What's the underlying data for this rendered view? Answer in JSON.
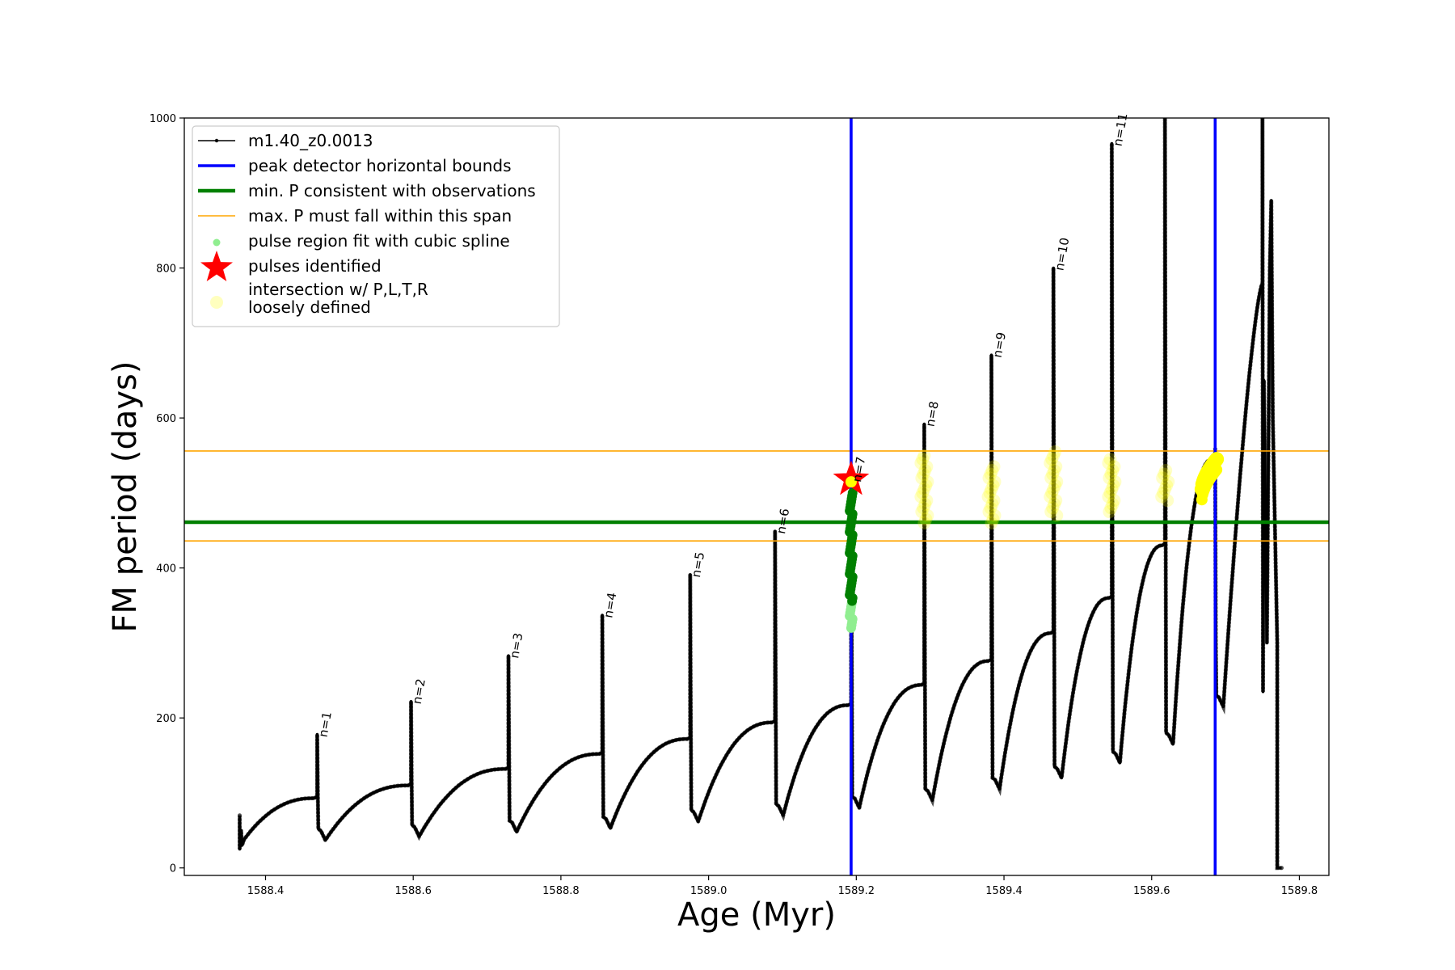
{
  "chart_data": {
    "type": "line",
    "xlabel": "Age (Myr)",
    "ylabel": "FM period (days)",
    "xlim": [
      1588.29,
      1589.84
    ],
    "ylim": [
      -10,
      1000
    ],
    "xticks": [
      1588.4,
      1588.6,
      1588.8,
      1589.0,
      1589.2,
      1589.4,
      1589.6,
      1589.8
    ],
    "xtick_labels": [
      "1588.4",
      "1588.6",
      "1588.8",
      "1589.0",
      "1589.2",
      "1589.4",
      "1589.6",
      "1589.8"
    ],
    "yticks": [
      0,
      200,
      400,
      600,
      800,
      1000
    ],
    "ytick_labels": [
      "0",
      "200",
      "400",
      "600",
      "800",
      "1000"
    ],
    "grid": false,
    "legend_position": "top-left",
    "colors": {
      "track": "#000000",
      "bounds": "#0000ff",
      "min_p": "#008000",
      "max_p": "#ffa500",
      "spline": "#90ee90",
      "pulse": "#ff0000",
      "intersection": "#ffff00"
    },
    "legend": [
      {
        "label": "m1.40_z0.0013",
        "marker": "line-dot"
      },
      {
        "label": "peak detector horizontal bounds",
        "marker": "blue-line"
      },
      {
        "label": "min. P consistent with observations",
        "marker": "green-line"
      },
      {
        "label": "max. P must fall within this span",
        "marker": "orange-line"
      },
      {
        "label": "pulse region fit with cubic spline",
        "marker": "lightgreen-dot"
      },
      {
        "label": "pulses identified",
        "marker": "red-star"
      },
      {
        "label_lines": [
          "intersection w/ P,L,T,R",
          "loosely defined"
        ],
        "marker": "yellow-dot"
      }
    ],
    "vertical_lines": [
      1589.193,
      1589.686
    ],
    "horizontal_lines": {
      "min_p": 461,
      "max_p": [
        436,
        556
      ]
    },
    "track": {
      "start": [
        1588.365,
        50
      ],
      "cycles": [
        {
          "tp": 1588.47,
          "pre": 93,
          "peak": 178,
          "dip": 37,
          "label": "n=1"
        },
        {
          "tp": 1588.597,
          "pre": 110,
          "peak": 222,
          "dip": 42,
          "label": "n=2"
        },
        {
          "tp": 1588.729,
          "pre": 132,
          "peak": 283,
          "dip": 48,
          "label": "n=3"
        },
        {
          "tp": 1588.856,
          "pre": 152,
          "peak": 337,
          "dip": 53,
          "label": "n=4"
        },
        {
          "tp": 1588.975,
          "pre": 172,
          "peak": 391,
          "dip": 62,
          "label": "n=5"
        },
        {
          "tp": 1589.09,
          "pre": 194,
          "peak": 449,
          "dip": 70,
          "label": "n=6"
        },
        {
          "tp": 1589.193,
          "pre": 217,
          "peak": 518,
          "dip": 80,
          "label": "n=7"
        },
        {
          "tp": 1589.292,
          "pre": 244,
          "peak": 592,
          "dip": 90,
          "label": "n=8"
        },
        {
          "tp": 1589.383,
          "pre": 276,
          "peak": 684,
          "dip": 105,
          "label": "n=9"
        },
        {
          "tp": 1589.467,
          "pre": 313,
          "peak": 800,
          "dip": 120,
          "label": "n=10"
        },
        {
          "tp": 1589.546,
          "pre": 360,
          "peak": 966,
          "dip": 140,
          "label": "n=11"
        },
        {
          "tp": 1589.618,
          "pre": 430,
          "peak": 1000,
          "dip": 165,
          "label": ""
        },
        {
          "tp": 1589.686,
          "pre": 545,
          "peak": 560,
          "dip": 215,
          "label": ""
        }
      ],
      "tail": {
        "x_top": 1589.75,
        "y_top": 780,
        "x_end": 1589.77,
        "y_end": 0
      }
    },
    "spline_region": {
      "x": 1589.193,
      "y_range": [
        320,
        500
      ]
    },
    "pulse_identified": {
      "x": 1589.193,
      "y": 518
    },
    "intersection_points": [
      {
        "x": 1589.292,
        "y": [
          460,
          550
        ]
      },
      {
        "x": 1589.383,
        "y": [
          460,
          535
        ]
      },
      {
        "x": 1589.467,
        "y": [
          470,
          555
        ]
      },
      {
        "x": 1589.546,
        "y": [
          475,
          545
        ]
      },
      {
        "x": 1589.618,
        "y": [
          490,
          530
        ]
      }
    ],
    "intersection_strong": {
      "x_range": [
        1589.668,
        1589.688
      ],
      "y_range": [
        505,
        545
      ]
    }
  }
}
